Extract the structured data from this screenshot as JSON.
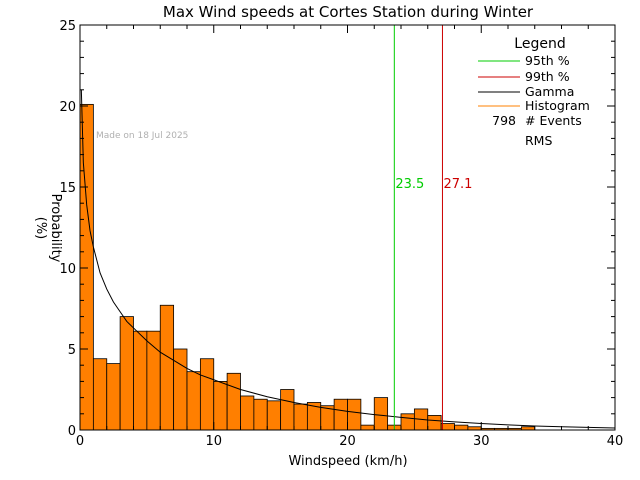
{
  "chart_data": {
    "type": "bar",
    "title": "Max Wind speeds at Cortes Station during Winter",
    "xlabel": "Windspeed (km/h)",
    "ylabel": "Probability",
    "ylabel_unit": "(%)",
    "xlim": [
      0,
      40
    ],
    "ylim": [
      0,
      25
    ],
    "x_ticks": [
      "0",
      "10",
      "20",
      "30",
      "40"
    ],
    "y_ticks": [
      "0",
      "5",
      "10",
      "15",
      "20",
      "25"
    ],
    "bin_width": 1,
    "bin_starts": [
      0,
      1,
      2,
      3,
      4,
      5,
      6,
      7,
      8,
      9,
      10,
      11,
      12,
      13,
      14,
      15,
      16,
      17,
      18,
      19,
      20,
      21,
      22,
      23,
      24,
      25,
      26,
      27,
      28,
      29,
      30,
      31,
      32,
      33,
      34,
      35,
      36,
      37,
      38,
      39
    ],
    "histogram_values": [
      20.1,
      4.4,
      4.1,
      7.0,
      6.1,
      6.1,
      7.7,
      5.0,
      3.6,
      4.4,
      3.0,
      3.5,
      2.1,
      1.9,
      1.8,
      2.5,
      1.6,
      1.7,
      1.5,
      1.9,
      1.9,
      0.3,
      2.0,
      0.3,
      1.0,
      1.3,
      0.9,
      0.4,
      0.3,
      0.2,
      0.1,
      0.1,
      0.1,
      0.2,
      0.0,
      0.0,
      0.0,
      0.0,
      0.0,
      0.0
    ],
    "gamma_curve": {
      "x": [
        0.1,
        0.25,
        0.5,
        0.75,
        1,
        1.5,
        2,
        2.5,
        3,
        3.5,
        4,
        5,
        6,
        7,
        8,
        9,
        10,
        12,
        14,
        16,
        18,
        20,
        22,
        24,
        26,
        28,
        30,
        32,
        34,
        36,
        38,
        40
      ],
      "y": [
        21.0,
        16.5,
        13.9,
        12.3,
        11.3,
        9.7,
        8.7,
        7.9,
        7.3,
        6.7,
        6.3,
        5.5,
        4.8,
        4.3,
        3.8,
        3.4,
        3.1,
        2.5,
        2.05,
        1.7,
        1.4,
        1.15,
        0.95,
        0.78,
        0.62,
        0.5,
        0.4,
        0.32,
        0.25,
        0.2,
        0.16,
        0.12
      ]
    },
    "percentile_95": {
      "value": 23.5,
      "label": "23.5"
    },
    "percentile_99": {
      "value": 27.1,
      "label": "27.1"
    },
    "legend": {
      "title": "Legend",
      "placement": "top-right",
      "entries": [
        {
          "label": "95th %",
          "color": "#00cc00"
        },
        {
          "label": "99th %",
          "color": "#cc0000"
        },
        {
          "label": "Gamma",
          "color": "#000000"
        },
        {
          "label": "Histogram",
          "color": "#ff8000"
        }
      ],
      "events_count": "798",
      "events_label": "# Events",
      "rms_label": "RMS"
    },
    "annotation": "Made on 18 Jul 2025"
  },
  "colors": {
    "histogram_fill": "#ff7f00",
    "p95": "#00cc00",
    "p99": "#cc0000",
    "gamma": "#000000"
  }
}
